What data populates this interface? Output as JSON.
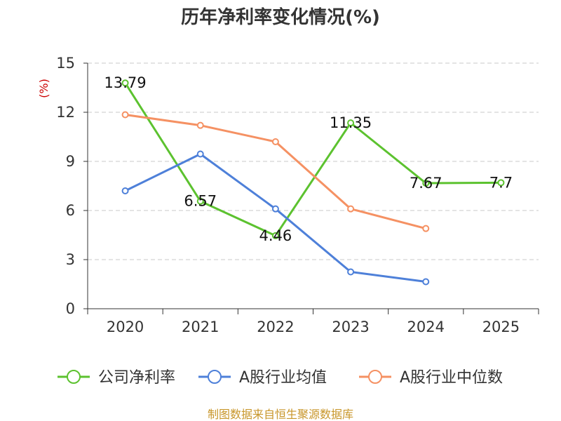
{
  "chart_data": {
    "type": "line",
    "title": "历年净利率变化情况(%)",
    "ylabel": "(%)",
    "xlabel": "",
    "categories": [
      "2020",
      "2021",
      "2022",
      "2023",
      "2024",
      "2025"
    ],
    "ylim": [
      0,
      15
    ],
    "yticks": [
      0,
      3,
      6,
      9,
      12,
      15
    ],
    "grid": true,
    "legend_position": "bottom",
    "series": [
      {
        "name": "公司净利率",
        "color": "#5cc22f",
        "values": [
          13.79,
          6.57,
          4.46,
          11.35,
          7.67,
          7.7
        ],
        "data_labels": [
          "13.79",
          "6.57",
          "4.46",
          "11.35",
          "7.67",
          "7.7"
        ]
      },
      {
        "name": "A股行业均值",
        "color": "#4e80d9",
        "values": [
          7.2,
          9.45,
          6.1,
          2.25,
          1.65,
          null
        ]
      },
      {
        "name": "A股行业中位数",
        "color": "#f59163",
        "values": [
          11.85,
          11.2,
          10.2,
          6.1,
          4.9,
          null
        ]
      }
    ],
    "source": "制图数据来自恒生聚源数据库"
  }
}
